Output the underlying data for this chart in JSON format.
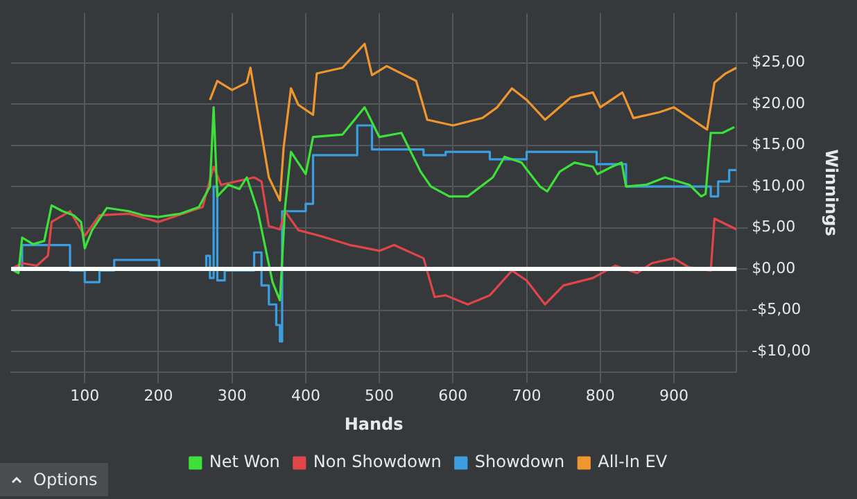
{
  "chart_data": {
    "type": "line",
    "xlabel": "Hands",
    "ylabel": "Winnings",
    "xlim": [
      0,
      985
    ],
    "xticks": [
      100,
      200,
      300,
      400,
      500,
      600,
      700,
      800,
      900
    ],
    "ylim": [
      -12.5,
      31
    ],
    "yticks": [
      {
        "value": -10,
        "label": "-$10,00"
      },
      {
        "value": -5,
        "label": "-$5,00"
      },
      {
        "value": 0,
        "label": "$0,00"
      },
      {
        "value": 5,
        "label": "$5,00"
      },
      {
        "value": 10,
        "label": "$10,00"
      },
      {
        "value": 15,
        "label": "$15,00"
      },
      {
        "value": 20,
        "label": "$20,00"
      },
      {
        "value": 25,
        "label": "$25,00"
      }
    ],
    "grid": true,
    "legend": "bottom",
    "marker": "none",
    "line_style": "solid",
    "ref_lines": [
      {
        "axis": "y",
        "value": 0,
        "label": null,
        "color": "#ffffff"
      }
    ],
    "annotations": [
      "Options"
    ],
    "series": [
      {
        "name": "Net Won",
        "color": "#3ee03a",
        "x": [
          0,
          10,
          15,
          30,
          45,
          55,
          70,
          85,
          95,
          100,
          110,
          130,
          160,
          180,
          200,
          230,
          255,
          270,
          275,
          280,
          295,
          310,
          320,
          335,
          355,
          365,
          372,
          380,
          400,
          410,
          450,
          480,
          500,
          530,
          556,
          570,
          595,
          620,
          654,
          670,
          693,
          718,
          728,
          745,
          765,
          790,
          796,
          816,
          829,
          835,
          862,
          888,
          921,
          937,
          943,
          950,
          966,
          982
        ],
        "values": [
          0,
          -0.5,
          3.8,
          3,
          3.4,
          7.7,
          7,
          6.5,
          5.7,
          2.5,
          4.7,
          7.4,
          7,
          6.5,
          6.3,
          6.7,
          7.5,
          10,
          19.6,
          8.8,
          10.2,
          9.7,
          11.1,
          7,
          -1.6,
          -3.8,
          7.5,
          14.2,
          11.5,
          16,
          16.3,
          19.6,
          16,
          16.5,
          11.8,
          10,
          8.8,
          8.8,
          11.1,
          13.6,
          12.9,
          10,
          9.4,
          11.8,
          12.9,
          12.4,
          11.5,
          12.4,
          12.9,
          10,
          10.2,
          11.1,
          10.2,
          8.8,
          9.1,
          16.5,
          16.5,
          17.2
        ]
      },
      {
        "name": "Non Showdown",
        "color": "#e0454a",
        "x": [
          0,
          15,
          35,
          50,
          55,
          80,
          100,
          120,
          160,
          200,
          260,
          275,
          285,
          330,
          340,
          350,
          365,
          372,
          390,
          420,
          460,
          500,
          520,
          560,
          575,
          590,
          620,
          650,
          680,
          700,
          725,
          750,
          790,
          820,
          850,
          870,
          900,
          920,
          950,
          955,
          985
        ],
        "values": [
          0,
          0.7,
          0.4,
          1.6,
          5.7,
          7,
          4,
          6.5,
          6.7,
          5.7,
          7.5,
          12.4,
          10.2,
          11.1,
          10.6,
          5.2,
          4.8,
          7,
          4.7,
          4,
          2.9,
          2.2,
          2.9,
          1.3,
          -3.4,
          -3.2,
          -4.3,
          -3.2,
          -0.2,
          -1.4,
          -4.3,
          -2,
          -1.1,
          0.4,
          -0.5,
          0.7,
          1.3,
          0.2,
          -0.2,
          6.1,
          4.8
        ]
      },
      {
        "name": "Showdown",
        "color": "#3a9ee0",
        "type": "step",
        "x": [
          0,
          15,
          70,
          80,
          100,
          120,
          140,
          200,
          201,
          260,
          265,
          270,
          275,
          280,
          290,
          330,
          340,
          350,
          360,
          365,
          368,
          400,
          410,
          460,
          470,
          490,
          560,
          590,
          650,
          700,
          790,
          795,
          835,
          940,
          950,
          960,
          975,
          985
        ],
        "values": [
          0,
          2.9,
          2.9,
          -0.2,
          -1.6,
          -0.2,
          1.1,
          1.1,
          0,
          0,
          1.6,
          -1.1,
          10,
          -1.4,
          -0.2,
          2,
          -2,
          -4.3,
          -6.8,
          -8.8,
          7,
          7.9,
          13.8,
          13.8,
          17.4,
          14.5,
          13.8,
          14.2,
          13.3,
          14.2,
          14.2,
          12.7,
          10,
          10,
          8.8,
          10.6,
          12,
          12
        ]
      },
      {
        "name": "All-In EV",
        "color": "#f0962e",
        "x": [
          270,
          280,
          300,
          320,
          325,
          335,
          350,
          365,
          370,
          380,
          390,
          410,
          415,
          450,
          480,
          490,
          510,
          550,
          565,
          600,
          640,
          660,
          680,
          700,
          725,
          760,
          790,
          800,
          830,
          845,
          880,
          900,
          945,
          955,
          970,
          985
        ],
        "values": [
          20.5,
          22.8,
          21.7,
          22.6,
          24.4,
          19,
          11.1,
          8.3,
          14.7,
          21.9,
          19.9,
          18.7,
          23.7,
          24.4,
          27.3,
          23.5,
          24.6,
          22.8,
          18.1,
          17.4,
          18.3,
          19.6,
          21.9,
          20.5,
          18.1,
          20.8,
          21.4,
          19.6,
          21.4,
          18.3,
          19,
          19.6,
          16.9,
          22.6,
          23.7,
          24.4
        ]
      }
    ]
  }
}
